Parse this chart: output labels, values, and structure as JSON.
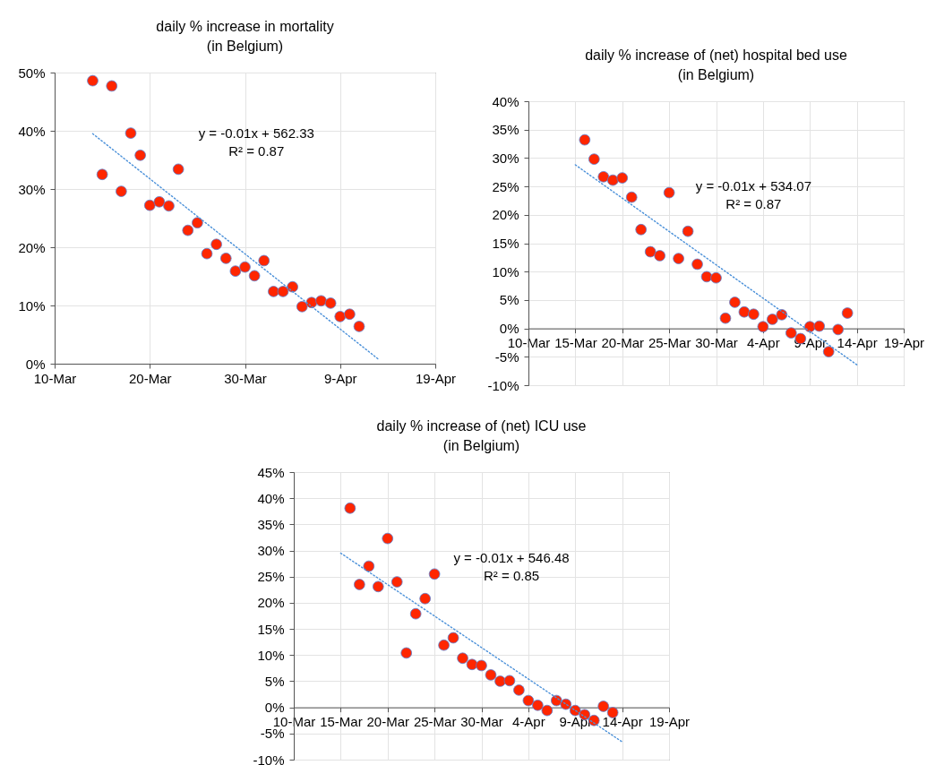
{
  "chart_data": [
    {
      "type": "scatter",
      "title": "daily % increase in mortality",
      "subtitle": "(in Belgium)",
      "grid": true,
      "xlim": [
        "--03-10",
        "--04-19"
      ],
      "xticks": [
        {
          "value": "--03-10",
          "label": "10-Mar"
        },
        {
          "value": "--03-20",
          "label": "20-Mar"
        },
        {
          "value": "--03-30",
          "label": "30-Mar"
        },
        {
          "value": "--04-09",
          "label": "9-Apr"
        },
        {
          "value": "--04-19",
          "label": "19-Apr"
        }
      ],
      "ylim": [
        0,
        50
      ],
      "yticks": [
        {
          "value": 0,
          "label": "0%"
        },
        {
          "value": 10,
          "label": "10%"
        },
        {
          "value": 20,
          "label": "20%"
        },
        {
          "value": 30,
          "label": "30%"
        },
        {
          "value": 40,
          "label": "40%"
        },
        {
          "value": 50,
          "label": "50%"
        }
      ],
      "annotations": [
        "y = -0.01x + 562.33",
        "R² = 0.87"
      ],
      "series": [
        {
          "type": "scatter",
          "marker": "circle",
          "color": "#ff2600",
          "x": [
            "--03-14",
            "--03-15",
            "--03-16",
            "--03-17",
            "--03-18",
            "--03-19",
            "--03-20",
            "--03-21",
            "--03-22",
            "--03-23",
            "--03-24",
            "--03-25",
            "--03-26",
            "--03-27",
            "--03-28",
            "--03-29",
            "--03-30",
            "--03-31",
            "--04-01",
            "--04-02",
            "--04-03",
            "--04-04",
            "--04-05",
            "--04-06",
            "--04-07",
            "--04-08",
            "--04-09",
            "--04-10",
            "--04-11"
          ],
          "values": [
            48.6,
            32.5,
            47.7,
            29.6,
            39.6,
            35.8,
            27.2,
            27.8,
            27.1,
            33.4,
            22.9,
            24.2,
            18.9,
            20.5,
            18.1,
            15.9,
            16.6,
            15.1,
            17.7,
            12.4,
            12.4,
            13.2,
            9.8,
            10.5,
            10.8,
            10.4,
            8.1,
            8.5,
            6.4
          ]
        },
        {
          "type": "line",
          "color": "#4a90d9",
          "line_style": "dotted",
          "x": [
            "--03-14",
            "--04-13"
          ],
          "values": [
            39.5,
            0.8
          ]
        }
      ]
    },
    {
      "type": "scatter",
      "title": "daily % increase of (net) hospital bed use",
      "subtitle": "(in Belgium)",
      "grid": true,
      "xlim": [
        "--03-10",
        "--04-19"
      ],
      "xticks": [
        {
          "value": "--03-10",
          "label": "10-Mar"
        },
        {
          "value": "--03-15",
          "label": "15-Mar"
        },
        {
          "value": "--03-20",
          "label": "20-Mar"
        },
        {
          "value": "--03-25",
          "label": "25-Mar"
        },
        {
          "value": "--03-30",
          "label": "30-Mar"
        },
        {
          "value": "--04-04",
          "label": "4-Apr"
        },
        {
          "value": "--04-09",
          "label": "9-Apr"
        },
        {
          "value": "--04-14",
          "label": "14-Apr"
        },
        {
          "value": "--04-19",
          "label": "19-Apr"
        }
      ],
      "ylim": [
        -10,
        40
      ],
      "yticks": [
        {
          "value": -10,
          "label": "-10%"
        },
        {
          "value": -5,
          "label": "-5%"
        },
        {
          "value": 0,
          "label": "0%"
        },
        {
          "value": 5,
          "label": "5%"
        },
        {
          "value": 10,
          "label": "10%"
        },
        {
          "value": 15,
          "label": "15%"
        },
        {
          "value": 20,
          "label": "20%"
        },
        {
          "value": 25,
          "label": "25%"
        },
        {
          "value": 30,
          "label": "30%"
        },
        {
          "value": 35,
          "label": "35%"
        },
        {
          "value": 40,
          "label": "40%"
        }
      ],
      "annotations": [
        "y = -0.01x + 534.07",
        "R² = 0.87"
      ],
      "series": [
        {
          "type": "scatter",
          "marker": "circle",
          "color": "#ff2600",
          "x": [
            "--03-16",
            "--03-17",
            "--03-18",
            "--03-19",
            "--03-20",
            "--03-21",
            "--03-22",
            "--03-23",
            "--03-24",
            "--03-25",
            "--03-26",
            "--03-27",
            "--03-28",
            "--03-29",
            "--03-30",
            "--03-31",
            "--04-01",
            "--04-02",
            "--04-03",
            "--04-04",
            "--04-05",
            "--04-06",
            "--04-07",
            "--04-08",
            "--04-09",
            "--04-10",
            "--04-11",
            "--04-12",
            "--04-13"
          ],
          "values": [
            33.2,
            29.8,
            26.7,
            26.1,
            26.5,
            23.1,
            17.4,
            13.5,
            12.8,
            23.9,
            12.3,
            17.1,
            11.3,
            9.1,
            8.9,
            1.8,
            4.6,
            2.9,
            2.5,
            0.3,
            1.6,
            2.4,
            -0.8,
            -1.8,
            0.3,
            0.4,
            -4.1,
            -0.2,
            2.7
          ]
        },
        {
          "type": "line",
          "color": "#4a90d9",
          "line_style": "dotted",
          "x": [
            "--03-15",
            "--04-14"
          ],
          "values": [
            28.8,
            -6.4
          ]
        }
      ]
    },
    {
      "type": "scatter",
      "title": "daily % increase of (net) ICU use",
      "subtitle": "(in Belgium)",
      "grid": true,
      "xlim": [
        "--03-10",
        "--04-19"
      ],
      "xticks": [
        {
          "value": "--03-10",
          "label": "10-Mar"
        },
        {
          "value": "--03-15",
          "label": "15-Mar"
        },
        {
          "value": "--03-20",
          "label": "20-Mar"
        },
        {
          "value": "--03-25",
          "label": "25-Mar"
        },
        {
          "value": "--03-30",
          "label": "30-Mar"
        },
        {
          "value": "--04-04",
          "label": "4-Apr"
        },
        {
          "value": "--04-09",
          "label": "9-Apr"
        },
        {
          "value": "--04-14",
          "label": "14-Apr"
        },
        {
          "value": "--04-19",
          "label": "19-Apr"
        }
      ],
      "ylim": [
        -10,
        45
      ],
      "yticks": [
        {
          "value": -10,
          "label": "-10%"
        },
        {
          "value": -5,
          "label": "-5%"
        },
        {
          "value": 0,
          "label": "0%"
        },
        {
          "value": 5,
          "label": "5%"
        },
        {
          "value": 10,
          "label": "10%"
        },
        {
          "value": 15,
          "label": "15%"
        },
        {
          "value": 20,
          "label": "20%"
        },
        {
          "value": 25,
          "label": "25%"
        },
        {
          "value": 30,
          "label": "30%"
        },
        {
          "value": 35,
          "label": "35%"
        },
        {
          "value": 40,
          "label": "40%"
        },
        {
          "value": 45,
          "label": "45%"
        }
      ],
      "annotations": [
        "y = -0.01x + 546.48",
        "R² = 0.85"
      ],
      "series": [
        {
          "type": "scatter",
          "marker": "circle",
          "color": "#ff2600",
          "x": [
            "--03-16",
            "--03-17",
            "--03-18",
            "--03-19",
            "--03-20",
            "--03-21",
            "--03-22",
            "--03-23",
            "--03-24",
            "--03-25",
            "--03-26",
            "--03-27",
            "--03-28",
            "--03-29",
            "--03-30",
            "--03-31",
            "--04-01",
            "--04-02",
            "--04-03",
            "--04-04",
            "--04-05",
            "--04-06",
            "--04-07",
            "--04-08",
            "--04-09",
            "--04-10",
            "--04-11",
            "--04-12",
            "--04-13"
          ],
          "values": [
            38.1,
            23.5,
            27.0,
            23.1,
            32.3,
            24.0,
            10.4,
            17.9,
            20.8,
            25.5,
            11.9,
            13.3,
            9.4,
            8.2,
            8.0,
            6.2,
            5.0,
            5.1,
            3.3,
            1.3,
            0.4,
            -0.6,
            1.3,
            0.6,
            -0.6,
            -1.4,
            -2.5,
            0.2,
            -1.0
          ]
        },
        {
          "type": "line",
          "color": "#4a90d9",
          "line_style": "dotted",
          "x": [
            "--03-15",
            "--04-14"
          ],
          "values": [
            29.5,
            -6.6
          ]
        }
      ]
    }
  ]
}
